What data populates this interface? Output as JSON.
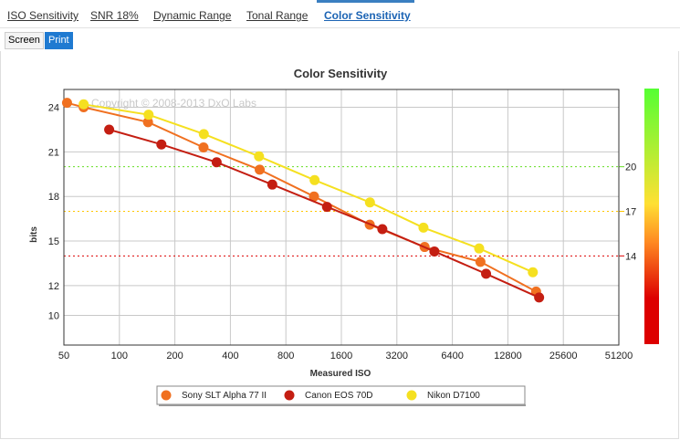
{
  "tabs": [
    {
      "label": "ISO Sensitivity",
      "active": false
    },
    {
      "label": "SNR 18%",
      "active": false
    },
    {
      "label": "Dynamic Range",
      "active": false
    },
    {
      "label": "Tonal Range",
      "active": false
    },
    {
      "label": "Color Sensitivity",
      "active": true
    }
  ],
  "view_toggle": {
    "screen": "Screen",
    "print": "Print",
    "selected": "Print"
  },
  "chart_data": {
    "type": "line",
    "title": "Color Sensitivity",
    "xlabel": "Measured ISO",
    "ylabel": "bits",
    "x_scale": "log2",
    "x_ticks": [
      50,
      100,
      200,
      400,
      800,
      1600,
      3200,
      6400,
      12800,
      25600,
      51200
    ],
    "xlim": [
      50,
      51200
    ],
    "y_ticks": [
      10,
      12,
      15,
      18,
      21,
      24
    ],
    "ylim": [
      8,
      25.2
    ],
    "grid": true,
    "watermark": "Copyright © 2008-2013 DxO Labs",
    "reference_lines": [
      {
        "value": 20,
        "label": "20",
        "color": "#66dd22"
      },
      {
        "value": 17,
        "label": "17",
        "color": "#ffc500"
      },
      {
        "value": 14,
        "label": "14",
        "color": "#dd0000"
      }
    ],
    "colorbar_colors": [
      "#55ff33",
      "#ffe033",
      "#ff8a22",
      "#dd0000"
    ],
    "legend_position": "bottom",
    "series": [
      {
        "name": "Sony SLT Alpha 77 II",
        "color": "#f07020",
        "x": [
          52,
          64,
          143,
          286,
          577,
          1137,
          2281,
          4525,
          9089,
          18212
        ],
        "y": [
          24.3,
          24.0,
          23.0,
          21.3,
          19.8,
          18.0,
          16.1,
          14.6,
          13.6,
          11.6
        ]
      },
      {
        "name": "Canon EOS 70D",
        "color": "#c41e12",
        "x": [
          88,
          169,
          337,
          675,
          1337,
          2669,
          5113,
          9751,
          18912
        ],
        "y": [
          22.5,
          21.5,
          20.3,
          18.8,
          17.3,
          15.8,
          14.3,
          12.8,
          11.2
        ]
      },
      {
        "name": "Nikon D7100",
        "color": "#f5e020",
        "x": [
          64,
          144,
          287,
          572,
          1145,
          2287,
          4461,
          8944,
          17488
        ],
        "y": [
          24.2,
          23.5,
          22.2,
          20.7,
          19.1,
          17.6,
          15.9,
          14.5,
          12.9
        ]
      }
    ]
  }
}
